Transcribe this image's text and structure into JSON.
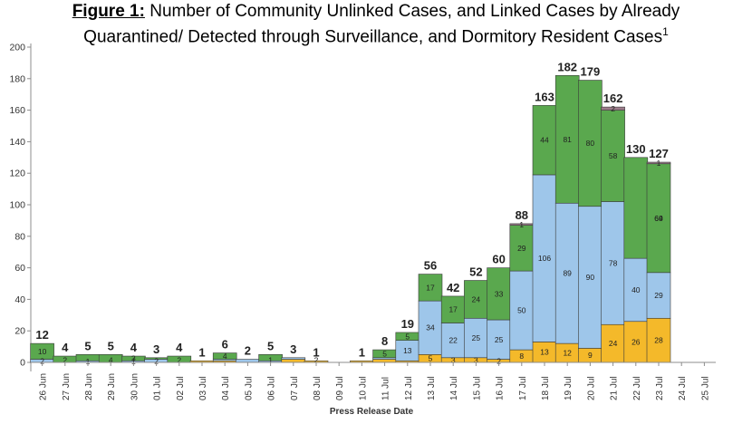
{
  "title": {
    "figure_label": "Figure 1:",
    "line1": "Number of Community Unlinked Cases, and Linked Cases by Already",
    "line2": "Quarantined/ Detected through Surveillance, and Dormitory Resident Cases",
    "footnote_marker": "1"
  },
  "colors": {
    "dormitory": "#f4b92a",
    "linked": "#9ec6ea",
    "quarantined": "#5aa84e",
    "unlinked": "#9c7c8a",
    "axis": "#8c8c8c",
    "grid": "#d9d9d9"
  },
  "chart_data": {
    "type": "bar",
    "stacked": true,
    "xlabel": "Press Release Date",
    "ylabel": "",
    "ylim": [
      0,
      200
    ],
    "yticks": [
      0,
      20,
      40,
      60,
      80,
      100,
      120,
      140,
      160,
      180,
      200
    ],
    "grid": false,
    "categories": [
      "26 Jun",
      "27 Jun",
      "28 Jun",
      "29 Jun",
      "30 Jun",
      "01 Jul",
      "02 Jul",
      "03 Jul",
      "04 Jul",
      "05 Jul",
      "06 Jul",
      "07 Jul",
      "08 Jul",
      "09 Jul",
      "10 Jul",
      "11 Jul",
      "12 Jul",
      "13 Jul",
      "14 Jul",
      "15 Jul",
      "16 Jul",
      "17 Jul",
      "18 Jul",
      "19 Jul",
      "20 Jul",
      "21 Jul",
      "22 Jul",
      "23 Jul",
      "24 Jul",
      "25 Jul"
    ],
    "totals": [
      12,
      4,
      5,
      5,
      4,
      3,
      4,
      1,
      6,
      2,
      5,
      3,
      1,
      null,
      1,
      8,
      19,
      56,
      42,
      52,
      60,
      88,
      163,
      182,
      179,
      162,
      130,
      127,
      null,
      null
    ],
    "series": [
      {
        "key": "dormitory",
        "values": [
          0,
          0,
          0,
          0,
          0,
          0,
          0,
          1,
          1,
          0,
          0,
          2,
          1,
          0,
          1,
          2,
          1,
          5,
          3,
          3,
          2,
          8,
          13,
          12,
          9,
          24,
          26,
          28,
          0,
          0
        ],
        "labels": [
          null,
          null,
          null,
          null,
          null,
          null,
          null,
          null,
          null,
          null,
          null,
          null,
          null,
          null,
          null,
          null,
          null,
          "5",
          "3",
          "3",
          "2",
          "8",
          "13",
          "12",
          "9",
          "24",
          "26",
          "28",
          null,
          null
        ]
      },
      {
        "key": "linked",
        "values": [
          2,
          0,
          1,
          0,
          1,
          2,
          0,
          0,
          1,
          2,
          1,
          1,
          0,
          0,
          0,
          1,
          13,
          34,
          22,
          25,
          25,
          50,
          106,
          89,
          90,
          78,
          40,
          29,
          0,
          0
        ],
        "labels": [
          "2",
          null,
          "1",
          null,
          "1",
          "2",
          null,
          null,
          null,
          null,
          null,
          null,
          null,
          null,
          null,
          null,
          "13",
          "34",
          "22",
          "25",
          "25",
          "50",
          "106",
          "89",
          "90",
          "78",
          "40",
          "29",
          null,
          null
        ]
      },
      {
        "key": "quarantined",
        "values": [
          10,
          4,
          4,
          5,
          3,
          1,
          4,
          0,
          4,
          0,
          4,
          0,
          0,
          0,
          0,
          5,
          5,
          17,
          17,
          24,
          33,
          29,
          44,
          81,
          80,
          58,
          64,
          69,
          0,
          0
        ],
        "labels": [
          "10",
          null,
          null,
          null,
          "3",
          null,
          null,
          null,
          "4",
          null,
          null,
          null,
          null,
          null,
          null,
          "5",
          "5",
          "17",
          "17",
          "24",
          "33",
          "29",
          "44",
          "81",
          "80",
          "58",
          null,
          "69",
          null,
          null
        ]
      },
      {
        "key": "unlinked",
        "values": [
          0,
          0,
          0,
          0,
          0,
          0,
          0,
          0,
          0,
          0,
          0,
          0,
          0,
          0,
          0,
          0,
          0,
          0,
          0,
          0,
          0,
          1,
          0,
          0,
          0,
          2,
          0,
          1,
          0,
          0
        ],
        "labels": [
          null,
          null,
          null,
          null,
          null,
          null,
          null,
          null,
          null,
          null,
          null,
          null,
          null,
          null,
          null,
          null,
          null,
          null,
          null,
          null,
          null,
          "1",
          null,
          null,
          null,
          "2",
          null,
          "1",
          null,
          null
        ]
      }
    ],
    "extra_labels": [
      {
        "category": "27 Jun",
        "text": "2"
      },
      {
        "category": "29 Jun",
        "text": "4"
      },
      {
        "category": "02 Jul",
        "text": "2"
      },
      {
        "category": "06 Jul",
        "text": "1"
      },
      {
        "category": "08 Jul",
        "text": "2"
      },
      {
        "category": "23 Jul",
        "text": "64"
      }
    ]
  }
}
